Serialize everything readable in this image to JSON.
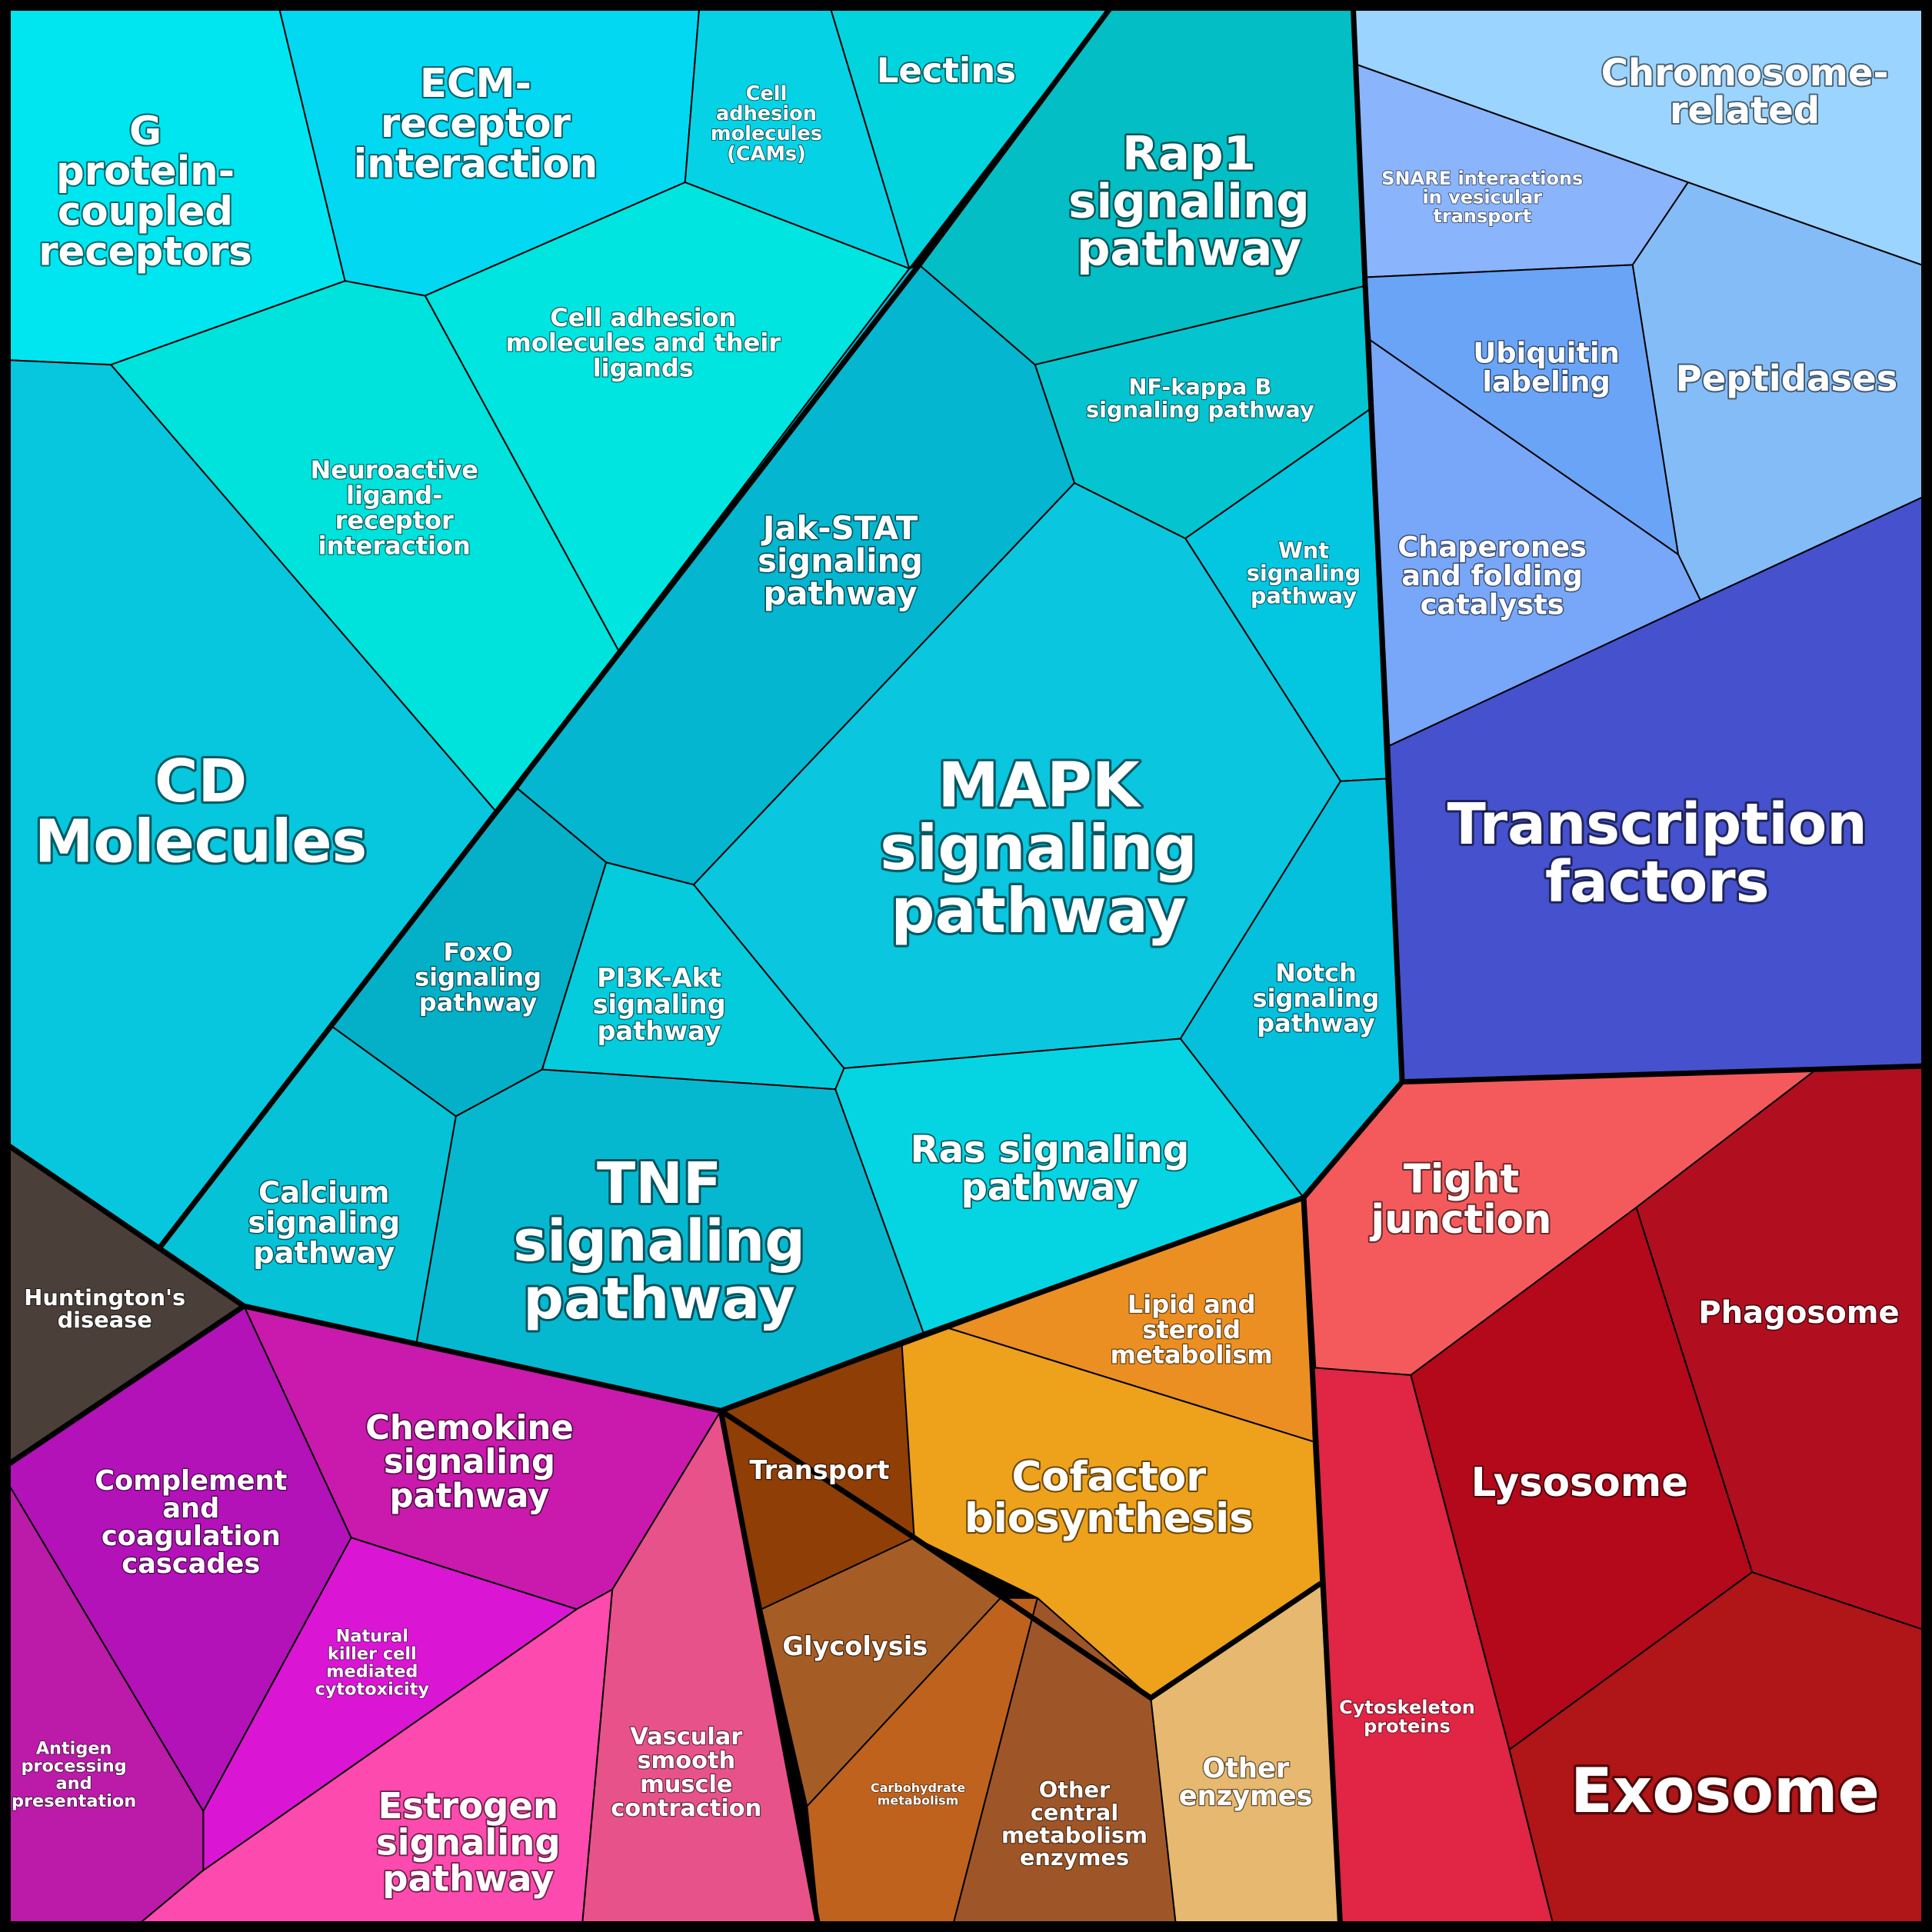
{
  "cells": [
    {
      "id": "g-protein-coupled-receptors",
      "label": "G protein-coupled receptors",
      "lines": [
        "G",
        "protein-",
        "coupled",
        "receptors"
      ],
      "color": "#00e6f0",
      "group": "signaling"
    },
    {
      "id": "ecm-receptor-interaction",
      "label": "ECM-receptor interaction",
      "lines": [
        "ECM-",
        "receptor",
        "interaction"
      ],
      "color": "#03d8f2",
      "group": "signaling"
    },
    {
      "id": "cell-adhesion-molecules-cams",
      "label": "Cell adhesion molecules (CAMs)",
      "lines": [
        "Cell",
        "adhesion",
        "molecules",
        "(CAMs)"
      ],
      "color": "#06d2e6",
      "group": "signaling"
    },
    {
      "id": "lectins",
      "label": "Lectins",
      "lines": [
        "Lectins"
      ],
      "color": "#02d4de",
      "group": "signaling"
    },
    {
      "id": "cell-adhesion-ligands",
      "label": "Cell adhesion molecules and their ligands",
      "lines": [
        "Cell adhesion",
        "molecules and their",
        "ligands"
      ],
      "color": "#00e5e0",
      "group": "signaling"
    },
    {
      "id": "neuroactive-ligand-receptor",
      "label": "Neuroactive ligand-receptor interaction",
      "lines": [
        "Neuroactive",
        "ligand-",
        "receptor",
        "interaction"
      ],
      "color": "#00e2dc",
      "group": "signaling"
    },
    {
      "id": "cd-molecules",
      "label": "CD Molecules",
      "lines": [
        "CD",
        "Molecules"
      ],
      "color": "#06c7dd",
      "group": "signaling"
    },
    {
      "id": "rap1-signaling-pathway",
      "label": "Rap1 signaling pathway",
      "lines": [
        "Rap1",
        "signaling",
        "pathway"
      ],
      "color": "#03bec4",
      "group": "signaling"
    },
    {
      "id": "nf-kappa-b-signaling-pathway",
      "label": "NF-kappa B signaling pathway",
      "lines": [
        "NF-kappa B",
        "signaling pathway"
      ],
      "color": "#04c5cf",
      "group": "signaling"
    },
    {
      "id": "jak-stat-signaling-pathway",
      "label": "Jak-STAT signaling pathway",
      "lines": [
        "Jak-STAT",
        "signaling",
        "pathway"
      ],
      "color": "#04b6cf",
      "group": "signaling"
    },
    {
      "id": "wnt-signaling-pathway",
      "label": "Wnt signaling pathway",
      "lines": [
        "Wnt",
        "signaling",
        "pathway"
      ],
      "color": "#03c7e0",
      "group": "signaling"
    },
    {
      "id": "mapk-signaling-pathway",
      "label": "MAPK signaling pathway",
      "lines": [
        "MAPK",
        "signaling",
        "pathway"
      ],
      "color": "#0ac6de",
      "group": "signaling"
    },
    {
      "id": "notch-signaling-pathway",
      "label": "Notch signaling pathway",
      "lines": [
        "Notch",
        "signaling",
        "pathway"
      ],
      "color": "#04c0dc",
      "group": "signaling"
    },
    {
      "id": "foxo-signaling-pathway",
      "label": "FoxO signaling pathway",
      "lines": [
        "FoxO",
        "signaling",
        "pathway"
      ],
      "color": "#04b0c7",
      "group": "signaling"
    },
    {
      "id": "pi3k-akt-signaling-pathway",
      "label": "PI3K-Akt signaling pathway",
      "lines": [
        "PI3K-Akt",
        "signaling",
        "pathway"
      ],
      "color": "#04ccdc",
      "group": "signaling"
    },
    {
      "id": "calcium-signaling-pathway",
      "label": "Calcium signaling pathway",
      "lines": [
        "Calcium",
        "signaling",
        "pathway"
      ],
      "color": "#05c2d6",
      "group": "signaling"
    },
    {
      "id": "tnf-signaling-pathway",
      "label": "TNF signaling pathway",
      "lines": [
        "TNF",
        "signaling",
        "pathway"
      ],
      "color": "#06b8cf",
      "group": "signaling"
    },
    {
      "id": "ras-signaling-pathway",
      "label": "Ras signaling pathway",
      "lines": [
        "Ras signaling",
        "pathway"
      ],
      "color": "#05d5e2",
      "group": "signaling"
    },
    {
      "id": "chromosome-related",
      "label": "Chromosome-related",
      "lines": [
        "Chromosome-",
        "related"
      ],
      "color": "#9bd4ff",
      "group": "genetic"
    },
    {
      "id": "snare-interactions",
      "label": "SNARE interactions in vesicular transport",
      "lines": [
        "SNARE interactions",
        "in vesicular",
        "transport"
      ],
      "color": "#8ab4fb",
      "group": "genetic"
    },
    {
      "id": "peptidases",
      "label": "Peptidases",
      "lines": [
        "Peptidases"
      ],
      "color": "#84bcf7",
      "group": "genetic"
    },
    {
      "id": "ubiquitin-labeling",
      "label": "Ubiquitin labeling",
      "lines": [
        "Ubiquitin",
        "labeling"
      ],
      "color": "#6aa4f7",
      "group": "genetic"
    },
    {
      "id": "chaperones-and-folding-catalysts",
      "label": "Chaperones and folding catalysts",
      "lines": [
        "Chaperones",
        "and folding",
        "catalysts"
      ],
      "color": "#78a6f8",
      "group": "genetic"
    },
    {
      "id": "transcription-factors",
      "label": "Transcription factors",
      "lines": [
        "Transcription",
        "factors"
      ],
      "color": "#4651cd",
      "group": "genetic"
    },
    {
      "id": "tight-junction",
      "label": "Tight junction",
      "lines": [
        "Tight",
        "junction"
      ],
      "color": "#f45a5c",
      "group": "cellular"
    },
    {
      "id": "phagosome",
      "label": "Phagosome",
      "lines": [
        "Phagosome"
      ],
      "color": "#b10f20",
      "group": "cellular"
    },
    {
      "id": "lysosome",
      "label": "Lysosome",
      "lines": [
        "Lysosome"
      ],
      "color": "#b4081b",
      "group": "cellular"
    },
    {
      "id": "cytoskeleton-proteins",
      "label": "Cytoskeleton proteins",
      "lines": [
        "Cytoskeleton",
        "proteins"
      ],
      "color": "#e02545",
      "group": "cellular"
    },
    {
      "id": "exosome",
      "label": "Exosome",
      "lines": [
        "Exosome"
      ],
      "color": "#b01518",
      "group": "cellular"
    },
    {
      "id": "lipid-and-steroid-metabolism",
      "label": "Lipid and steroid metabolism",
      "lines": [
        "Lipid and",
        "steroid",
        "metabolism"
      ],
      "color": "#eb8f22",
      "group": "metabolism"
    },
    {
      "id": "transport",
      "label": "Transport",
      "lines": [
        "Transport"
      ],
      "color": "#8f3e06",
      "group": "metabolism"
    },
    {
      "id": "cofactor-biosynthesis",
      "label": "Cofactor biosynthesis",
      "lines": [
        "Cofactor",
        "biosynthesis"
      ],
      "color": "#eea11b",
      "group": "metabolism"
    },
    {
      "id": "glycolysis",
      "label": "Glycolysis",
      "lines": [
        "Glycolysis"
      ],
      "color": "#a65d25",
      "group": "metabolism"
    },
    {
      "id": "carbohydrate-metabolism",
      "label": "Carbohydrate metabolism",
      "lines": [
        "Carbohydrate",
        "metabolism"
      ],
      "color": "#bf621d",
      "group": "metabolism"
    },
    {
      "id": "other-central-metabolism-enzymes",
      "label": "Other central metabolism enzymes",
      "lines": [
        "Other",
        "central",
        "metabolism",
        "enzymes"
      ],
      "color": "#9e5628",
      "group": "metabolism"
    },
    {
      "id": "other-enzymes",
      "label": "Other enzymes",
      "lines": [
        "Other",
        "enzymes"
      ],
      "color": "#e6b870",
      "group": "metabolism"
    },
    {
      "id": "huntingtons-disease",
      "label": "Huntington's disease",
      "lines": [
        "Huntington's",
        "disease"
      ],
      "color": "#4b3f3a",
      "group": "disease"
    },
    {
      "id": "chemokine-signaling-pathway",
      "label": "Chemokine signaling pathway",
      "lines": [
        "Chemokine",
        "signaling",
        "pathway"
      ],
      "color": "#c91aad",
      "group": "immune"
    },
    {
      "id": "complement-and-coagulation-cascades",
      "label": "Complement and coagulation cascades",
      "lines": [
        "Complement",
        "and",
        "coagulation",
        "cascades"
      ],
      "color": "#b212b8",
      "group": "immune"
    },
    {
      "id": "natural-killer-cell-cytotoxicity",
      "label": "Natural killer cell mediated cytotoxicity",
      "lines": [
        "Natural",
        "killer cell",
        "mediated",
        "cytotoxicity"
      ],
      "color": "#da16d4",
      "group": "immune"
    },
    {
      "id": "antigen-processing-and-presentation",
      "label": "Antigen processing and presentation",
      "lines": [
        "Antigen",
        "processing",
        "and",
        "presentation"
      ],
      "color": "#bb1ba8",
      "group": "immune"
    },
    {
      "id": "estrogen-signaling-pathway",
      "label": "Estrogen signaling pathway",
      "lines": [
        "Estrogen",
        "signaling",
        "pathway"
      ],
      "color": "#fd4aae",
      "group": "immune"
    },
    {
      "id": "vascular-smooth-muscle-contraction",
      "label": "Vascular smooth muscle contraction",
      "lines": [
        "Vascular",
        "smooth",
        "muscle",
        "contraction"
      ],
      "color": "#e8528a",
      "group": "immune"
    }
  ]
}
